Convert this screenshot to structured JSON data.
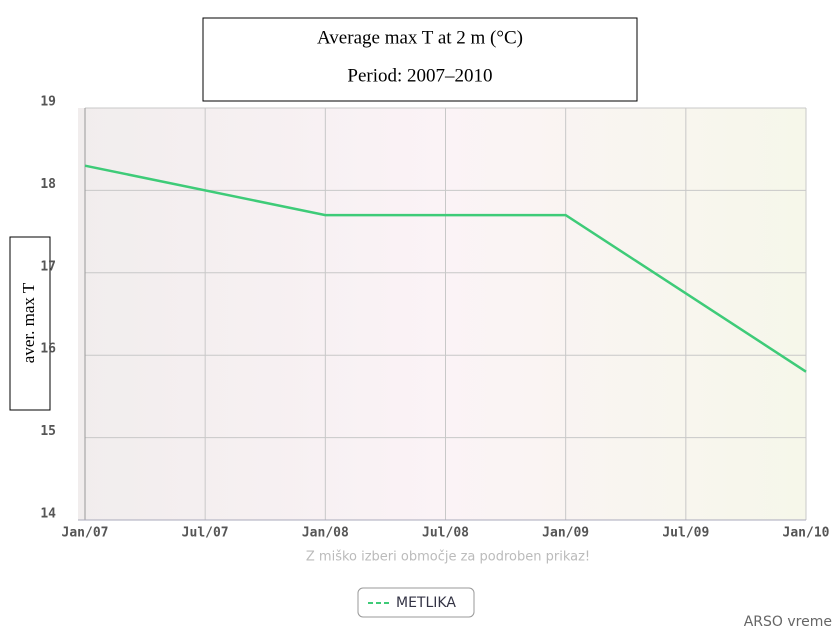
{
  "chart_data": {
    "type": "line",
    "title": "Average max T at 2 m (°C)",
    "subtitle": "Period: 2007–2010",
    "y_label": "aver. max T",
    "x_note": "Z miško izberi območje za podroben prikaz!",
    "credit": "ARSO vreme",
    "x": [
      "Jan/07",
      "Jan/08",
      "Jan/09",
      "Jan/10"
    ],
    "series": [
      {
        "name": "METLIKA",
        "color": "#3ecb78",
        "values": [
          18.3,
          17.7,
          17.7,
          15.8
        ]
      }
    ],
    "xticks": [
      "Jan/07",
      "Jul/07",
      "Jan/08",
      "Jul/08",
      "Jan/09",
      "Jul/09",
      "Jan/10"
    ],
    "ylim": [
      14,
      19
    ],
    "yticks": [
      14,
      15,
      16,
      17,
      18,
      19
    ],
    "grid": true
  }
}
